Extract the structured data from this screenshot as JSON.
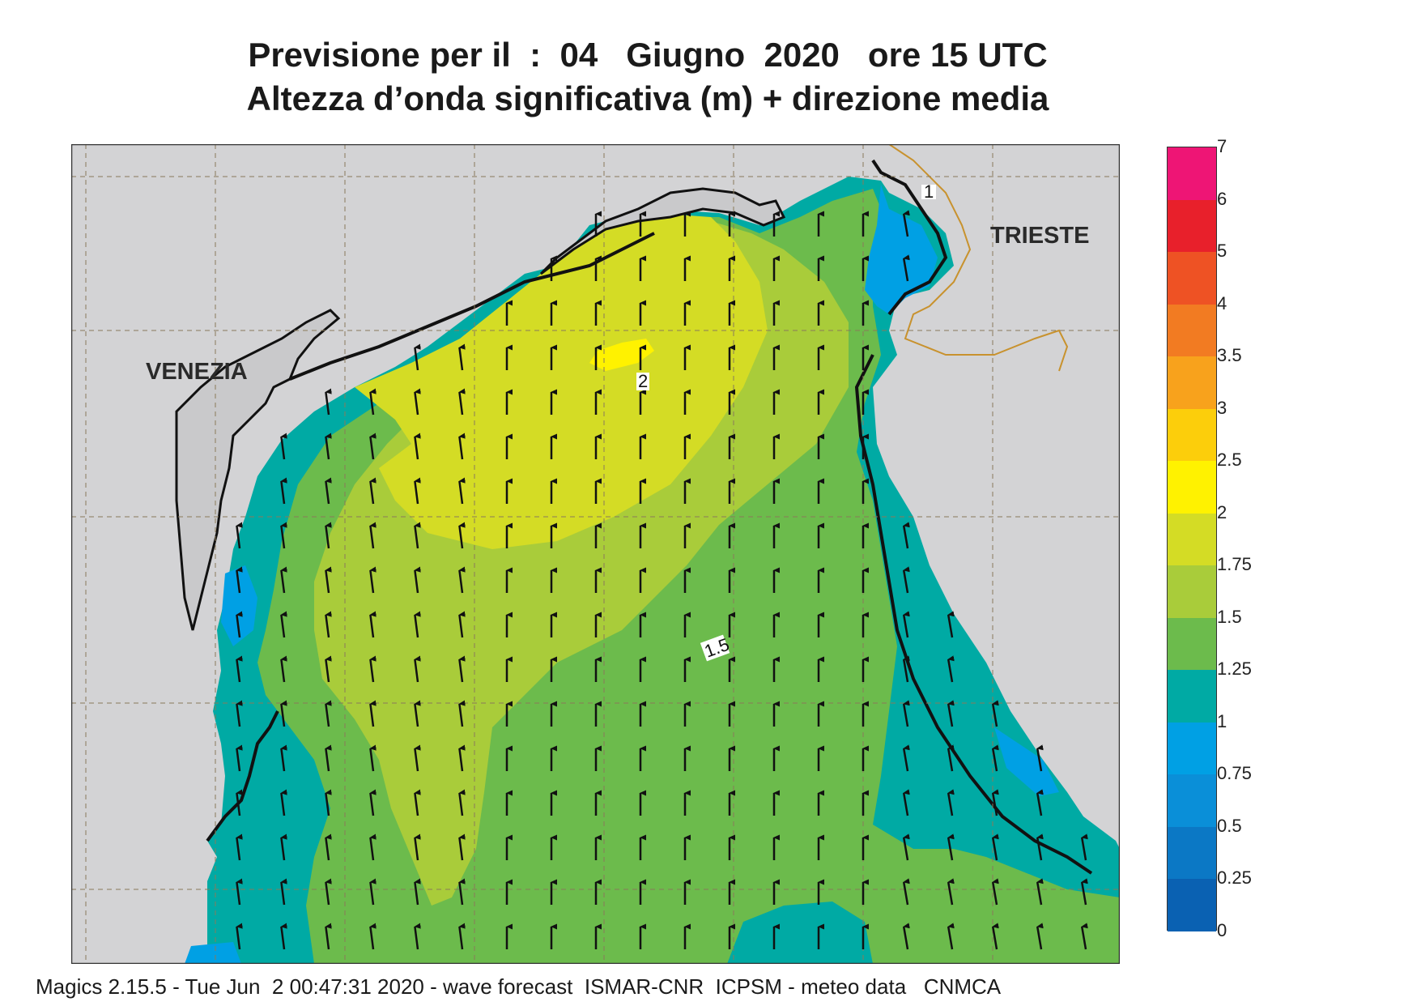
{
  "title": {
    "line1": "Previsione per il  :  04   Giugno  2020   ore 15 UTC",
    "line2": "Altezza d’onda significativa (m) + direzione media"
  },
  "map": {
    "cities": {
      "venezia": "VENEZIA",
      "trieste": "TRIESTE"
    },
    "contour_labels": {
      "c2": "2",
      "c15": "1.5",
      "c1": "1"
    },
    "colors": {
      "land": "#d3d3d5",
      "coast": "#111111",
      "border": "#c8922e",
      "h_075_1": "#00a0e4",
      "h_1_125": "#00aaa4",
      "h_125_15": "#6cbb4c",
      "h_15_175": "#a9cc3a",
      "h_175_2": "#d4dc25"
    },
    "arrow_direction": "north",
    "grid": true
  },
  "legend": {
    "labels": [
      "7",
      "6",
      "5",
      "4",
      "3.5",
      "3",
      "2.5",
      "2",
      "1.75",
      "1.5",
      "1.25",
      "1",
      "0.75",
      "0.5",
      "0.25",
      "0"
    ],
    "colors": [
      "#ee1575",
      "#e8202b",
      "#ee5224",
      "#f27b22",
      "#f8a21c",
      "#fcce0b",
      "#fff200",
      "#d4dc25",
      "#a9cc3a",
      "#6cbb4c",
      "#00aaa4",
      "#00a0e4",
      "#0a8fd8",
      "#0b78c5",
      "#0a61b2"
    ]
  },
  "footer": "Magics 2.15.5 - Tue Jun  2 00:47:31 2020 - wave forecast  ISMAR-CNR  ICPSM - meteo data   CNMCA"
}
